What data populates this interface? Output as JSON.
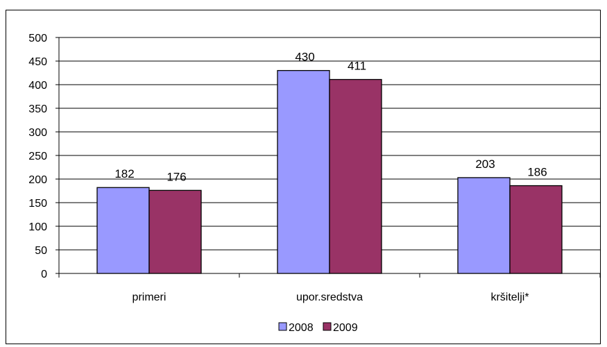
{
  "chart_data": {
    "type": "bar",
    "title": "",
    "xlabel": "",
    "ylabel": "",
    "categories": [
      "primeri",
      "upor.sredstva",
      "kršitelji*"
    ],
    "series": [
      {
        "name": "2008",
        "values": [
          182,
          430,
          203
        ],
        "color": "#9999ff"
      },
      {
        "name": "2009",
        "values": [
          176,
          411,
          186
        ],
        "color": "#993366"
      }
    ],
    "ylim": [
      0,
      500
    ],
    "yticks": [
      0,
      50,
      100,
      150,
      200,
      250,
      300,
      350,
      400,
      450,
      500
    ],
    "grid": true,
    "data_labels": true,
    "legend_position": "bottom",
    "colors": {
      "plot_background": "#ffffff",
      "grid": "#000000",
      "frame": "#000000"
    }
  }
}
